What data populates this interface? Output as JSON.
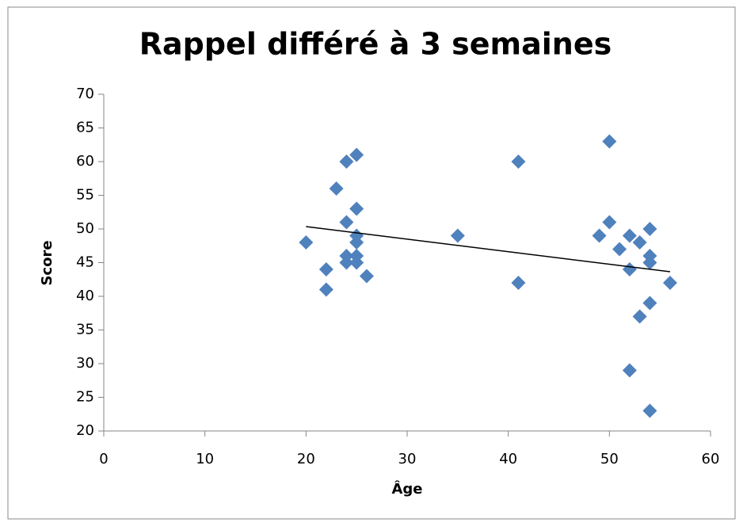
{
  "chart_data": {
    "type": "scatter",
    "title": "Rappel différé à 3 semaines",
    "x_label": "Âge",
    "y_label": "Score",
    "x": [
      20,
      22,
      22,
      23,
      24,
      24,
      24,
      24,
      25,
      25,
      25,
      25,
      25,
      25,
      26,
      35,
      41,
      41,
      50,
      50,
      49,
      51,
      52,
      52,
      52,
      53,
      53,
      54,
      54,
      54,
      54,
      54,
      56
    ],
    "values": [
      48,
      44,
      41,
      56,
      60,
      51,
      46,
      45,
      61,
      53,
      49,
      48,
      46,
      45,
      43,
      49,
      60,
      42,
      63,
      51,
      49,
      47,
      49,
      44,
      29,
      48,
      37,
      50,
      46,
      45,
      39,
      23,
      42
    ],
    "color": "#4f81bd",
    "trendline": {
      "x": [
        20,
        56
      ],
      "values": [
        50.35,
        43.65
      ],
      "color": "#000000"
    },
    "xlim": [
      0,
      60
    ],
    "xticks": [
      0,
      10,
      20,
      30,
      40,
      50,
      60
    ],
    "ylim": [
      20,
      70
    ],
    "yticks": [
      20,
      25,
      30,
      35,
      40,
      45,
      50,
      55,
      60,
      65,
      70
    ],
    "grid": false
  }
}
